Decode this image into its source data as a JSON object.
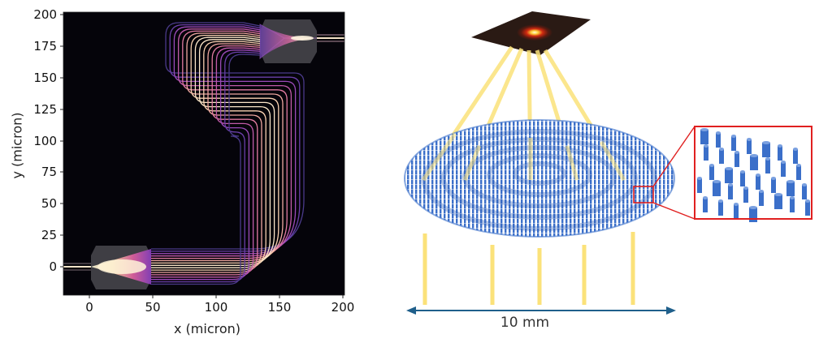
{
  "left_chart": {
    "xlabel": "x (micron)",
    "ylabel": "y (micron)",
    "xticks": [
      "0",
      "50",
      "100",
      "150",
      "200"
    ],
    "yticks": [
      "0",
      "25",
      "50",
      "75",
      "100",
      "125",
      "150",
      "175",
      "200"
    ],
    "xlim": [
      -20,
      200
    ],
    "ylim": [
      -22,
      202
    ],
    "background": "#05040a",
    "colormap": "magma"
  },
  "right_diagram": {
    "scale_label": "10 mm",
    "beam_color": "#fbe27a",
    "pillar_color": "#3b6fc9",
    "inset_border_color": "#e02020",
    "scale_arrow_color": "#1f5f8b",
    "focal_plane_color": "#2a1a14"
  },
  "chart_data": {
    "type": "heatmap",
    "title": "",
    "xlabel": "x (micron)",
    "ylabel": "y (micron)",
    "xlim": [
      -20,
      200
    ],
    "ylim": [
      -22,
      202
    ],
    "xticks": [
      0,
      50,
      100,
      150,
      200
    ],
    "yticks": [
      0,
      25,
      50,
      75,
      100,
      125,
      150,
      175,
      200
    ],
    "grid": false,
    "legend": null,
    "description": "Simulated light intensity in an S-shaped waveguide array: input waveguide at y=0 feeds a free-propagation region (x≈0–50), fanning into ~16 waveguides routed in an S-path (right to x≈180, up to y≈100–150, left to x≈55, up to y≈180) into a second free-propagation region (x≈135–180, y≈165–195) that refocuses to an output waveguide at y≈180.",
    "regions": [
      {
        "name": "input slab",
        "x": [
          0,
          50
        ],
        "y": [
          -10,
          18
        ]
      },
      {
        "name": "output slab",
        "x": [
          135,
          178
        ],
        "y": [
          165,
          195
        ]
      },
      {
        "name": "input waveguide",
        "x": [
          -20,
          0
        ],
        "y": [
          0,
          0
        ]
      },
      {
        "name": "output waveguide",
        "x": [
          178,
          200
        ],
        "y": [
          180,
          180
        ]
      }
    ],
    "waveguide_count": 16
  }
}
